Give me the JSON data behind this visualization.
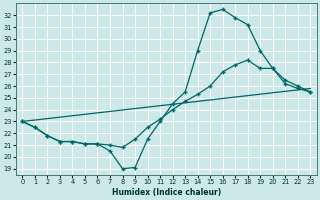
{
  "xlabel": "Humidex (Indice chaleur)",
  "bg_color": "#cce8e8",
  "grid_color": "#b8d8d8",
  "line_color": "#006666",
  "xlim": [
    -0.5,
    23.5
  ],
  "ylim": [
    18.5,
    33.0
  ],
  "yticks": [
    19,
    20,
    21,
    22,
    23,
    24,
    25,
    26,
    27,
    28,
    29,
    30,
    31,
    32
  ],
  "xticks": [
    0,
    1,
    2,
    3,
    4,
    5,
    6,
    7,
    8,
    9,
    10,
    11,
    12,
    13,
    14,
    15,
    16,
    17,
    18,
    19,
    20,
    21,
    22,
    23
  ],
  "curve1_x": [
    0,
    1,
    2,
    3,
    4,
    5,
    6,
    7,
    8,
    9,
    10,
    11,
    12,
    13,
    14,
    15,
    16,
    17,
    18,
    19,
    20,
    21,
    22,
    23
  ],
  "curve1_y": [
    23.0,
    22.5,
    21.8,
    21.3,
    21.3,
    21.1,
    21.1,
    20.5,
    19.0,
    19.1,
    21.5,
    23.0,
    24.5,
    25.5,
    29.0,
    32.2,
    32.5,
    31.8,
    31.2,
    29.0,
    27.5,
    26.5,
    26.0,
    25.5
  ],
  "curve2_x": [
    0,
    1,
    2,
    3,
    4,
    5,
    6,
    7,
    8,
    9,
    10,
    11,
    12,
    13,
    14,
    15,
    16,
    17,
    18,
    19,
    20,
    21,
    22,
    23
  ],
  "curve2_y": [
    23.0,
    22.5,
    21.8,
    21.3,
    21.3,
    21.1,
    21.1,
    21.0,
    20.8,
    21.5,
    22.5,
    23.2,
    24.0,
    24.7,
    25.3,
    26.0,
    27.2,
    27.8,
    28.2,
    27.5,
    27.5,
    26.2,
    25.8,
    25.5
  ],
  "curve3_x": [
    0,
    23
  ],
  "curve3_y": [
    23.0,
    25.8
  ]
}
